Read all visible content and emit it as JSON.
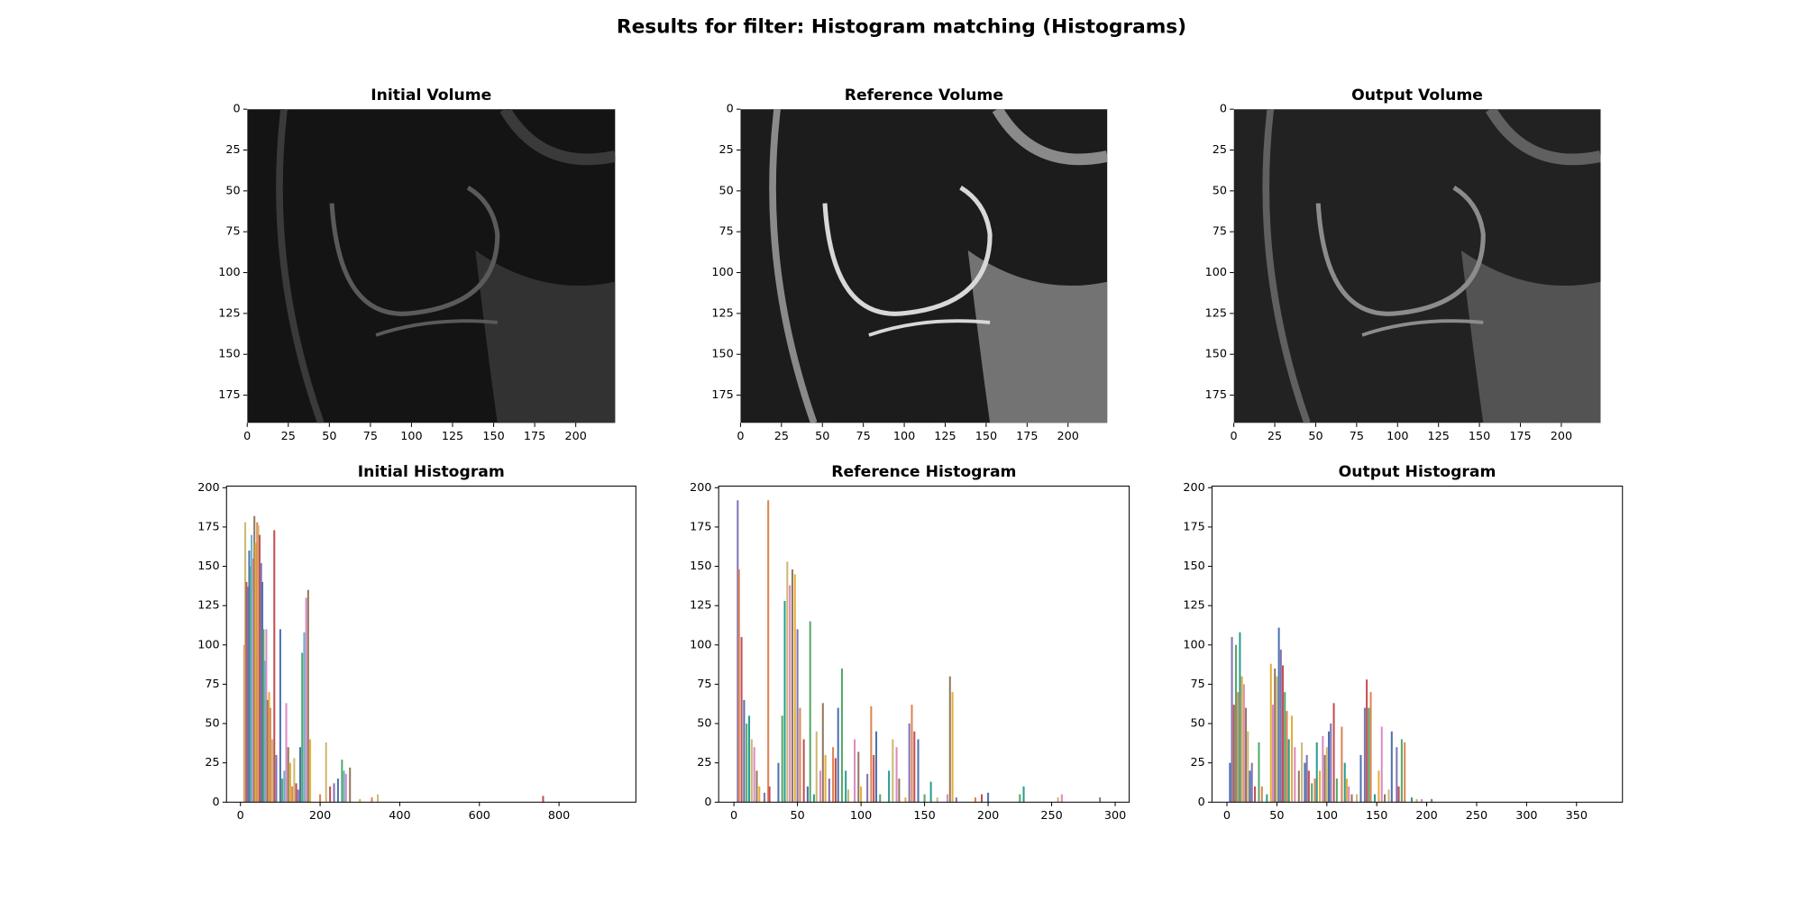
{
  "title": "Results for filter: Histogram matching (Histograms)",
  "chart_data": [
    {
      "type": "image",
      "title": "Initial Volume",
      "xlim": [
        0,
        224
      ],
      "ylim": [
        192,
        0
      ],
      "xticks": [
        0,
        25,
        50,
        75,
        100,
        125,
        150,
        175,
        200
      ],
      "yticks": [
        0,
        25,
        50,
        75,
        100,
        125,
        150,
        175
      ]
    },
    {
      "type": "image",
      "title": "Reference Volume",
      "xlim": [
        0,
        224
      ],
      "ylim": [
        192,
        0
      ],
      "xticks": [
        0,
        25,
        50,
        75,
        100,
        125,
        150,
        175,
        200
      ],
      "yticks": [
        0,
        25,
        50,
        75,
        100,
        125,
        150,
        175
      ]
    },
    {
      "type": "image",
      "title": "Output Volume",
      "xlim": [
        0,
        224
      ],
      "ylim": [
        192,
        0
      ],
      "xticks": [
        0,
        25,
        50,
        75,
        100,
        125,
        150,
        175,
        200
      ],
      "yticks": [
        0,
        25,
        50,
        75,
        100,
        125,
        150,
        175
      ]
    },
    {
      "type": "bar",
      "title": "Initial Histogram",
      "xlim": [
        -35,
        993
      ],
      "ylim": [
        0,
        201
      ],
      "xticks": [
        0,
        200,
        400,
        600,
        800
      ],
      "yticks": [
        0,
        25,
        50,
        75,
        100,
        125,
        150,
        175,
        200
      ],
      "colors": [
        "#dd8452",
        "#ccb974",
        "#c44e52",
        "#8172b3",
        "#4c72b0",
        "#55a868",
        "#64b5cd",
        "#da8bc3",
        "#937860",
        "#e5ae38"
      ],
      "x": [
        10,
        12,
        15,
        18,
        22,
        25,
        28,
        32,
        35,
        38,
        42,
        45,
        48,
        52,
        55,
        58,
        62,
        65,
        68,
        72,
        75,
        80,
        85,
        90,
        100,
        105,
        110,
        115,
        120,
        125,
        130,
        135,
        140,
        145,
        150,
        155,
        160,
        165,
        170,
        175,
        200,
        215,
        225,
        235,
        245,
        255,
        260,
        265,
        275,
        300,
        330,
        345,
        760
      ],
      "values": [
        100,
        178,
        140,
        137,
        160,
        150,
        170,
        155,
        182,
        165,
        178,
        176,
        170,
        152,
        140,
        110,
        90,
        110,
        65,
        70,
        60,
        40,
        173,
        30,
        110,
        15,
        20,
        63,
        35,
        25,
        10,
        28,
        12,
        8,
        35,
        95,
        108,
        130,
        135,
        40,
        5,
        38,
        10,
        12,
        15,
        27,
        20,
        18,
        22,
        2,
        3,
        5,
        4
      ]
    },
    {
      "type": "bar",
      "title": "Reference Histogram",
      "xlim": [
        -12,
        311
      ],
      "ylim": [
        0,
        201
      ],
      "xticks": [
        0,
        50,
        100,
        150,
        200,
        250,
        300
      ],
      "yticks": [
        0,
        25,
        50,
        75,
        100,
        125,
        150,
        175,
        200
      ],
      "colors": [
        "#8172b3",
        "#dd8452",
        "#c44e52",
        "#4c72b0",
        "#55a868",
        "#2a9d8f",
        "#ccb974",
        "#da8bc3",
        "#937860",
        "#e5ae38"
      ],
      "x": [
        3,
        4,
        6,
        8,
        10,
        12,
        14,
        16,
        18,
        20,
        24,
        27,
        28,
        35,
        38,
        40,
        42,
        44,
        46,
        48,
        50,
        52,
        55,
        58,
        60,
        63,
        65,
        68,
        70,
        72,
        75,
        78,
        80,
        82,
        85,
        88,
        90,
        95,
        98,
        100,
        105,
        108,
        110,
        112,
        115,
        122,
        125,
        128,
        130,
        135,
        138,
        140,
        142,
        145,
        150,
        155,
        160,
        168,
        170,
        172,
        175,
        190,
        195,
        200,
        225,
        228,
        255,
        258,
        288
      ],
      "values": [
        192,
        148,
        105,
        65,
        50,
        55,
        40,
        35,
        20,
        10,
        6,
        192,
        10,
        25,
        55,
        128,
        153,
        138,
        148,
        145,
        110,
        60,
        40,
        10,
        115,
        5,
        45,
        20,
        63,
        30,
        15,
        35,
        28,
        60,
        85,
        20,
        8,
        40,
        32,
        10,
        18,
        61,
        30,
        45,
        5,
        20,
        40,
        35,
        15,
        3,
        50,
        62,
        45,
        40,
        5,
        13,
        3,
        5,
        80,
        70,
        3,
        3,
        5,
        6,
        5,
        10,
        3,
        5,
        3
      ]
    },
    {
      "type": "bar",
      "title": "Output Histogram",
      "xlim": [
        -15,
        396
      ],
      "ylim": [
        0,
        201
      ],
      "xticks": [
        0,
        50,
        100,
        150,
        200,
        250,
        300,
        350
      ],
      "yticks": [
        0,
        25,
        50,
        75,
        100,
        125,
        150,
        175,
        200
      ],
      "colors": [
        "#4c72b0",
        "#8172b3",
        "#c44e52",
        "#55a868",
        "#dd8452",
        "#2a9d8f",
        "#e5ae38",
        "#da8bc3",
        "#937860",
        "#ccb974"
      ],
      "x": [
        3,
        5,
        7,
        9,
        11,
        13,
        15,
        17,
        19,
        21,
        23,
        25,
        28,
        32,
        35,
        40,
        44,
        46,
        48,
        50,
        52,
        54,
        56,
        58,
        60,
        62,
        65,
        68,
        72,
        75,
        78,
        80,
        82,
        85,
        88,
        90,
        93,
        96,
        98,
        100,
        102,
        104,
        107,
        110,
        115,
        118,
        120,
        122,
        125,
        130,
        134,
        138,
        140,
        142,
        144,
        148,
        152,
        155,
        158,
        162,
        165,
        170,
        172,
        175,
        178,
        185,
        190,
        195,
        205
      ],
      "values": [
        25,
        105,
        62,
        100,
        70,
        108,
        80,
        75,
        60,
        45,
        20,
        25,
        10,
        38,
        10,
        5,
        88,
        62,
        85,
        80,
        111,
        97,
        87,
        70,
        58,
        40,
        55,
        35,
        20,
        38,
        25,
        30,
        20,
        12,
        15,
        38,
        20,
        42,
        30,
        35,
        45,
        50,
        63,
        15,
        48,
        25,
        15,
        10,
        5,
        5,
        30,
        60,
        78,
        60,
        70,
        5,
        20,
        48,
        5,
        8,
        45,
        35,
        10,
        40,
        38,
        3,
        2,
        2,
        2
      ]
    }
  ]
}
